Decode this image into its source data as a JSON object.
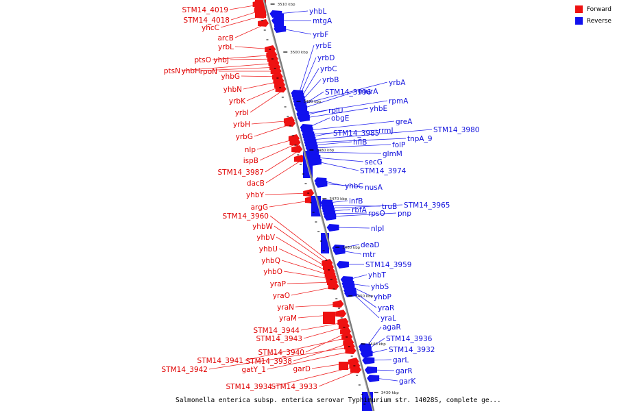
{
  "legend": {
    "forward_label": "Forward",
    "reverse_label": "Reverse",
    "forward_color": "#ee1111",
    "reverse_color": "#1111ee"
  },
  "caption": "Salmonella enterica subsp. enterica serovar Typhimurium str. 14028S, complete ge...",
  "ticks": [
    "3510 kbp",
    "3500 kbp",
    "3490 kbp",
    "3480 kbp",
    "3470 kbp",
    "3460 kbp",
    "3450 kbp",
    "3440 kbp",
    "3430 kbp"
  ],
  "forward_genes": [
    "STM14_4019",
    "STM14_4018",
    "yhcC",
    "arcB",
    "yrbL",
    "ptsO",
    "yhbJ",
    "ptsN",
    "yhbH",
    "rpoN",
    "yhbG",
    "yhbN",
    "yrbK",
    "yrbI",
    "yrbH",
    "yrbG",
    "nlp",
    "ispB",
    "STM14_3987",
    "dacB",
    "yhbY",
    "argG",
    "STM14_3960",
    "yhbW",
    "yhbV",
    "yhbU",
    "yhbQ",
    "yhbO",
    "yraP",
    "yraO",
    "yraN",
    "yraM",
    "STM14_3944",
    "STM14_3943",
    "STM14_3940",
    "STM14_3941",
    "STM14_3938",
    "STM14_3942",
    "gatY_1",
    "garD",
    "STM14_3934",
    "STM14_3933"
  ],
  "reverse_genes": [
    "yhbL",
    "mtgA",
    "yrbF",
    "yrbE",
    "yrbD",
    "yrbC",
    "yrbB",
    "yrbA",
    "STM14_3996",
    "murA",
    "rpmA",
    "rplU",
    "yhbE",
    "obgE",
    "greA",
    "rrmJ",
    "STM14_3985",
    "STM14_3980",
    "tnpA_9",
    "hflB",
    "folP",
    "glmM",
    "secG",
    "STM14_3974",
    "yhbC",
    "nusA",
    "infB",
    "truB",
    "STM14_3965",
    "rbfA",
    "rpsO",
    "pnp",
    "nlpI",
    "deaD",
    "mtr",
    "STM14_3959",
    "yhbT",
    "yhbS",
    "yhbP",
    "yraR",
    "yraL",
    "agaR",
    "STM14_3936",
    "STM14_3932",
    "garL",
    "garR",
    "garK"
  ]
}
